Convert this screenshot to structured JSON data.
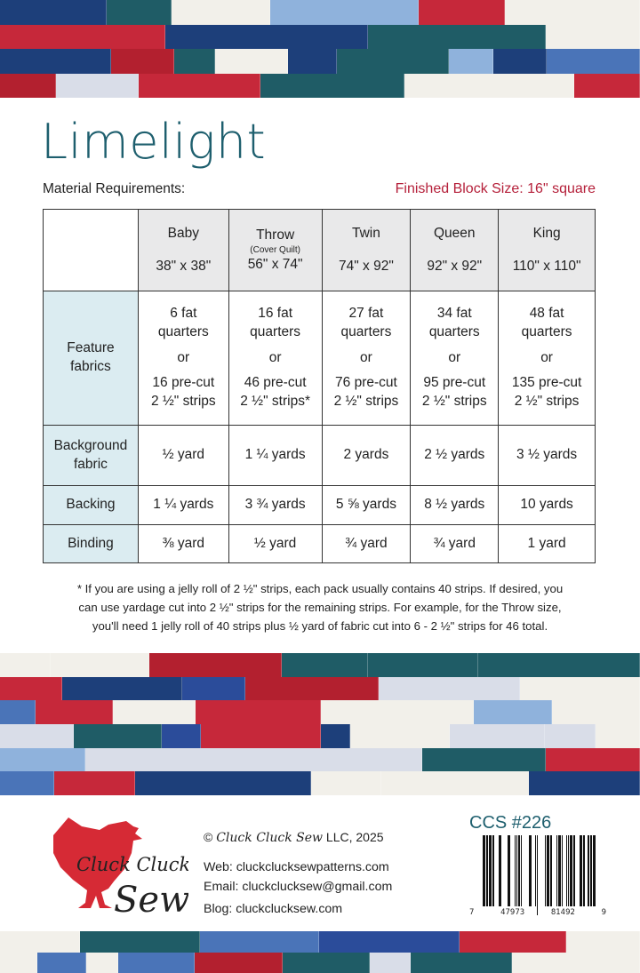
{
  "title": "Limelight",
  "material_heading": "Material Requirements:",
  "finished_block": "Finished Block Size:  16\" square",
  "table": {
    "columns": [
      {
        "name": "Baby",
        "note": "",
        "size": "38\" x 38\""
      },
      {
        "name": "Throw",
        "note": "(Cover Quilt)",
        "size": "56\" x 74\""
      },
      {
        "name": "Twin",
        "note": "",
        "size": "74\" x 92\""
      },
      {
        "name": "Queen",
        "note": "",
        "size": "92\" x 92\""
      },
      {
        "name": "King",
        "note": "",
        "size": "110\" x 110\""
      }
    ],
    "feature": {
      "label1": "Feature",
      "label2": "fabrics",
      "cells": [
        {
          "fq1": "6 fat",
          "fq2": "quarters",
          "or": "or",
          "pc1": "16 pre-cut",
          "pc2": "2 ½\" strips"
        },
        {
          "fq1": "16 fat",
          "fq2": "quarters",
          "or": "or",
          "pc1": "46 pre-cut",
          "pc2": "2 ½\" strips*"
        },
        {
          "fq1": "27 fat",
          "fq2": "quarters",
          "or": "or",
          "pc1": "76 pre-cut",
          "pc2": "2 ½\" strips"
        },
        {
          "fq1": "34 fat",
          "fq2": "quarters",
          "or": "or",
          "pc1": "95 pre-cut",
          "pc2": "2 ½\" strips"
        },
        {
          "fq1": "48 fat",
          "fq2": "quarters",
          "or": "or",
          "pc1": "135 pre-cut",
          "pc2": "2 ½\" strips"
        }
      ]
    },
    "background": {
      "label1": "Background",
      "label2": "fabric",
      "cells": [
        "½ yard",
        "1 ¼ yards",
        "2 yards",
        "2 ½ yards",
        "3 ½ yards"
      ]
    },
    "backing": {
      "label": "Backing",
      "cells": [
        "1 ¼ yards",
        "3 ¾ yards",
        "5 ⅝ yards",
        "8 ½ yards",
        "10 yards"
      ]
    },
    "binding": {
      "label": "Binding",
      "cells": [
        "⅜ yard",
        "½ yard",
        "¾ yard",
        "¾ yard",
        "1 yard"
      ]
    }
  },
  "footnote": {
    "line1": "* If you are using a jelly roll of 2 ½\" strips, each pack usually contains 40 strips. If desired, you",
    "line2": "can use yardage cut into 2 ½\" strips for the remaining strips. For example, for the Throw size,",
    "line3": "you'll need 1 jelly roll of 40 strips plus ½ yard of fabric cut into 6 - 2 ½\" strips for 46 total."
  },
  "footer": {
    "logo_text1": "Cluck Cluck",
    "logo_text2": "Sew",
    "copyright_symbol": "©",
    "copyright_brand": "Cluck Cluck Sew",
    "copyright_rest": " LLC, 2025",
    "web": "Web: cluckclucksewpatterns.com",
    "email": "Email: cluckclucksew@gmail.com",
    "blog": "Blog:  cluckclucksew.com",
    "ccs": "CCS #226",
    "barcode_digits": [
      "7",
      "47973",
      "81492",
      "9"
    ]
  },
  "colors": {
    "title": "#1e5f6e",
    "accent_red": "#b5203a",
    "header_gray": "#e9e9ea",
    "label_blue": "#dbecf1",
    "quilt_palette": [
      "#f2f0ea",
      "#1d3f7a",
      "#c6283a",
      "#4a74b8",
      "#1f5c66",
      "#8fb2dc",
      "#f2f0ea",
      "#2b4c9a",
      "#d9dde8",
      "#b3202f"
    ]
  }
}
